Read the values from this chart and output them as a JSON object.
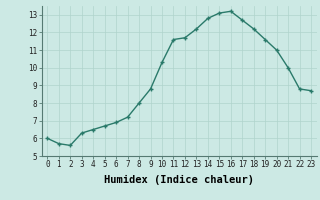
{
  "x": [
    0,
    1,
    2,
    3,
    4,
    5,
    6,
    7,
    8,
    9,
    10,
    11,
    12,
    13,
    14,
    15,
    16,
    17,
    18,
    19,
    20,
    21,
    22,
    23
  ],
  "y": [
    6.0,
    5.7,
    5.6,
    6.3,
    6.5,
    6.7,
    6.9,
    7.2,
    8.0,
    8.8,
    10.3,
    11.6,
    11.7,
    12.2,
    12.8,
    13.1,
    13.2,
    12.7,
    12.2,
    11.6,
    11.0,
    10.0,
    8.8,
    8.7
  ],
  "xlabel": "Humidex (Indice chaleur)",
  "bg_color": "#cce9e4",
  "line_color": "#2a7a6a",
  "grid_color": "#b0d4cc",
  "ylim": [
    5,
    13.5
  ],
  "xlim": [
    -0.5,
    23.5
  ],
  "yticks": [
    5,
    6,
    7,
    8,
    9,
    10,
    11,
    12,
    13
  ],
  "xticks": [
    0,
    1,
    2,
    3,
    4,
    5,
    6,
    7,
    8,
    9,
    10,
    11,
    12,
    13,
    14,
    15,
    16,
    17,
    18,
    19,
    20,
    21,
    22,
    23
  ],
  "tick_fontsize": 5.5,
  "xlabel_fontsize": 7.5,
  "line_width": 1.0,
  "marker_size": 3.5
}
